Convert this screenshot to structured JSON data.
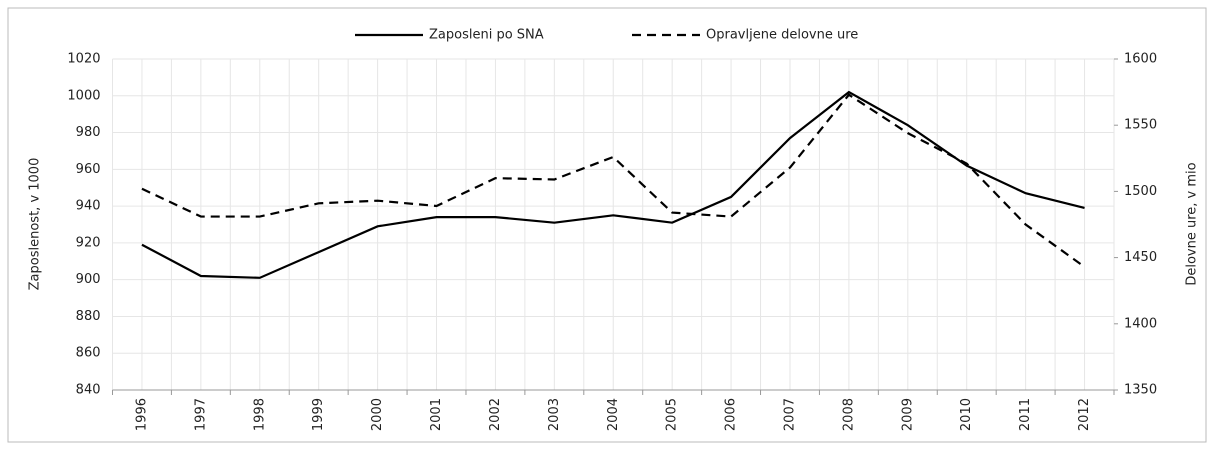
{
  "chart_data": {
    "type": "line",
    "categories": [
      "1996",
      "1997",
      "1998",
      "1999",
      "2000",
      "2001",
      "2002",
      "2003",
      "2004",
      "2005",
      "2006",
      "2007",
      "2008",
      "2009",
      "2010",
      "2011",
      "2012"
    ],
    "series": [
      {
        "name": "Zaposleni po SNA",
        "color": "#000000",
        "line_style": "solid",
        "axis": "y",
        "values": [
          919,
          902,
          901,
          915,
          929,
          934,
          934,
          931,
          935,
          931,
          945,
          977,
          1002,
          984,
          962,
          947,
          939
        ]
      },
      {
        "name": "Opravljene delovne ure",
        "color": "#000000",
        "line_style": "dashed",
        "axis": "y2",
        "values": [
          1502,
          1481,
          1481,
          1491,
          1493,
          1489,
          1510,
          1509,
          1526,
          1484,
          1481,
          1518,
          1573,
          1544,
          1521,
          1475,
          1443
        ]
      }
    ],
    "ylabel": "Zaposlenost, v 1000",
    "y2label": "Delovne ure, v mio",
    "ylim": [
      840,
      1020
    ],
    "yticks": [
      840,
      860,
      880,
      900,
      920,
      940,
      960,
      980,
      1000,
      1020
    ],
    "y2lim": [
      1350,
      1600
    ],
    "y2ticks": [
      1350,
      1400,
      1450,
      1500,
      1550,
      1600
    ],
    "grid": true,
    "legend": "top"
  }
}
